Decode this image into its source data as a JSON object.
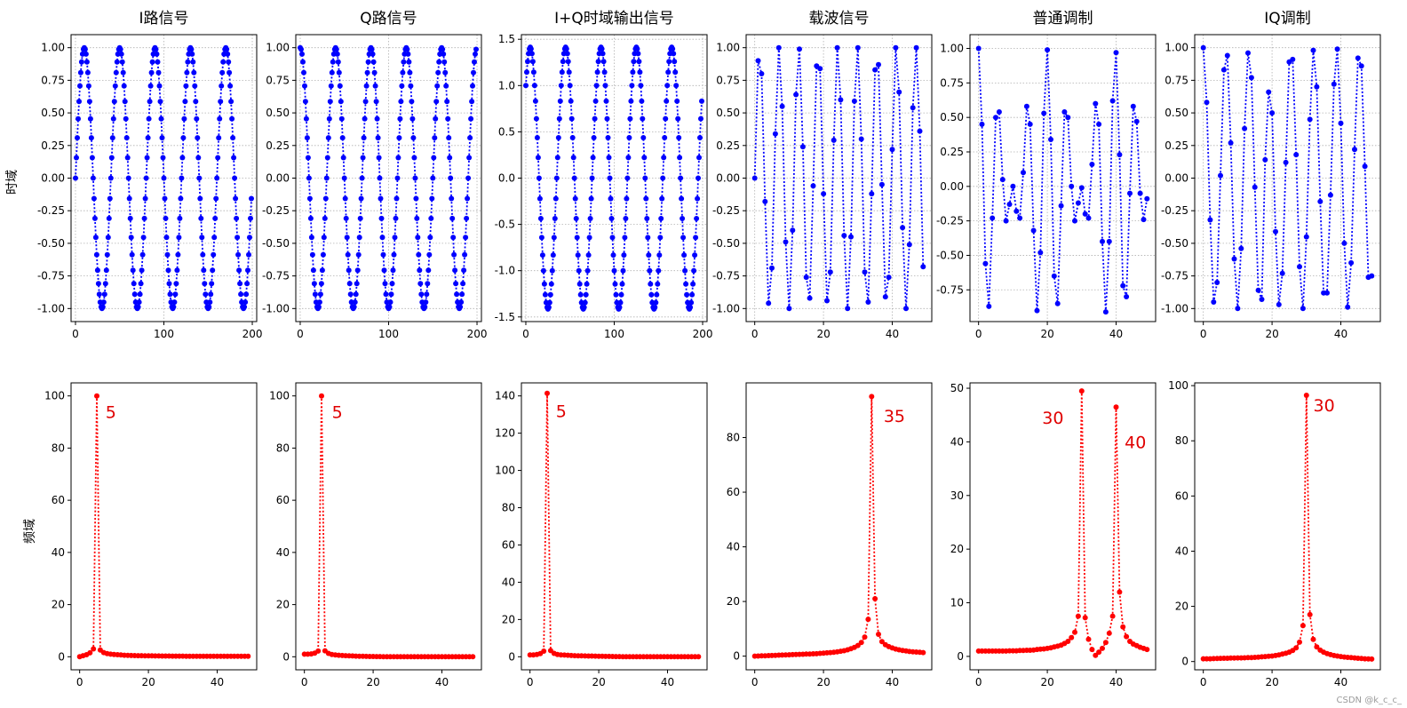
{
  "watermark": "CSDN @k_c_c_",
  "colors": {
    "time": "#0000ff",
    "freq": "#ff0000",
    "annotation": "#e00000",
    "grid": "#b0b0b0",
    "axis": "#000000"
  },
  "row_labels": {
    "time": "时域",
    "freq": "频域"
  },
  "chart_data": [
    {
      "id": "t0",
      "type": "line",
      "title": "I路信号",
      "xlim": [
        -5,
        205
      ],
      "ylim": [
        -1.1,
        1.1
      ],
      "xticks": [
        0,
        100,
        200
      ],
      "xticklabels": [
        "0",
        "100",
        "200"
      ],
      "yticks": [
        1.0,
        0.75,
        0.5,
        0.25,
        0.0,
        -0.25,
        -0.5,
        -0.75,
        -1.0
      ],
      "yticklabels": [
        "1.00",
        "0.75",
        "0.50",
        "0.25",
        "0.00",
        "-0.25",
        "-0.50",
        "-0.75",
        "-1.00"
      ],
      "grid": true,
      "marker": "dotted-line-with-dots",
      "series": {
        "kind": "sine",
        "n": 200,
        "cycles": 5,
        "phase": "sin",
        "amplitude": 1
      }
    },
    {
      "id": "t1",
      "type": "line",
      "title": "Q路信号",
      "xlim": [
        -5,
        205
      ],
      "ylim": [
        -1.1,
        1.1
      ],
      "xticks": [
        0,
        100,
        200
      ],
      "xticklabels": [
        "0",
        "100",
        "200"
      ],
      "yticks": [
        1.0,
        0.75,
        0.5,
        0.25,
        0.0,
        -0.25,
        -0.5,
        -0.75,
        -1.0
      ],
      "yticklabels": [
        "1.00",
        "0.75",
        "0.50",
        "0.25",
        "0.00",
        "-0.25",
        "-0.50",
        "-0.75",
        "-1.00"
      ],
      "grid": true,
      "marker": "dotted-line-with-dots",
      "series": {
        "kind": "sine",
        "n": 200,
        "cycles": 5,
        "phase": "cos",
        "amplitude": 1
      }
    },
    {
      "id": "t2",
      "type": "line",
      "title": "I+Q时域输出信号",
      "xlim": [
        -5,
        205
      ],
      "ylim": [
        -1.55,
        1.55
      ],
      "xticks": [
        0,
        100,
        200
      ],
      "xticklabels": [
        "0",
        "100",
        "200"
      ],
      "yticks": [
        1.5,
        1.0,
        0.5,
        0.0,
        -0.5,
        -1.0,
        -1.5
      ],
      "yticklabels": [
        "1.5",
        "1.0",
        "0.5",
        "0.0",
        "-0.5",
        "-1.0",
        "-1.5"
      ],
      "grid": true,
      "marker": "dotted-line-with-dots",
      "series": {
        "kind": "sine",
        "n": 200,
        "cycles": 5,
        "phase": "sum",
        "amplitude": 1
      }
    },
    {
      "id": "t3",
      "type": "line",
      "title": "载波信号",
      "xlim": [
        -2.5,
        51.5
      ],
      "ylim": [
        -1.1,
        1.1
      ],
      "xticks": [
        0,
        20,
        40
      ],
      "xticklabels": [
        "0",
        "20",
        "40"
      ],
      "yticks": [
        1.0,
        0.75,
        0.5,
        0.25,
        0.0,
        -0.25,
        -0.5,
        -0.75,
        -1.0
      ],
      "yticklabels": [
        "1.00",
        "0.75",
        "0.50",
        "0.25",
        "0.00",
        "-0.25",
        "-0.50",
        "-0.75",
        "-1.00"
      ],
      "grid": true,
      "marker": "dotted-line-with-dots",
      "series": {
        "kind": "values",
        "x_start": 0,
        "x_step": 1,
        "values": [
          0.0,
          0.9,
          0.8,
          -0.18,
          -0.96,
          -0.69,
          0.34,
          1.0,
          0.55,
          -0.49,
          -1.0,
          -0.4,
          0.64,
          0.99,
          0.24,
          -0.76,
          -0.92,
          -0.06,
          0.86,
          0.84,
          -0.12,
          -0.94,
          -0.72,
          0.29,
          1.0,
          0.6,
          -0.44,
          -1.0,
          -0.45,
          0.59,
          1.0,
          0.3,
          -0.72,
          -0.95,
          -0.12,
          0.83,
          0.87,
          -0.05,
          -0.91,
          -0.76,
          0.22,
          1.0,
          0.66,
          -0.38,
          -1.0,
          -0.51,
          0.54,
          1.0,
          0.36,
          -0.68
        ]
      }
    },
    {
      "id": "t4",
      "type": "line",
      "title": "普通调制",
      "xlim": [
        -2.5,
        51.5
      ],
      "ylim": [
        -0.98,
        1.1
      ],
      "xticks": [
        0,
        20,
        40
      ],
      "xticklabels": [
        "0",
        "20",
        "40"
      ],
      "yticks": [
        1.0,
        0.75,
        0.5,
        0.25,
        0.0,
        -0.25,
        -0.5,
        -0.75
      ],
      "yticklabels": [
        "1.00",
        "0.75",
        "0.50",
        "0.25",
        "0.00",
        "-0.25",
        "-0.50",
        "-0.75"
      ],
      "grid": true,
      "marker": "dotted-line-with-dots",
      "series": {
        "kind": "values",
        "x_start": 0,
        "x_step": 1,
        "values": [
          1.0,
          0.45,
          -0.56,
          -0.87,
          -0.23,
          0.5,
          0.54,
          0.05,
          -0.25,
          -0.13,
          0.0,
          -0.18,
          -0.23,
          0.1,
          0.58,
          0.45,
          -0.32,
          -0.9,
          -0.48,
          0.53,
          0.99,
          0.34,
          -0.65,
          -0.85,
          -0.14,
          0.54,
          0.5,
          0.0,
          -0.25,
          -0.12,
          -0.01,
          -0.2,
          -0.23,
          0.16,
          0.6,
          0.45,
          -0.4,
          -0.91,
          -0.4,
          0.62,
          0.97,
          0.23,
          -0.72,
          -0.8,
          -0.05,
          0.58,
          0.47,
          -0.05,
          -0.24,
          -0.09
        ]
      }
    },
    {
      "id": "t5",
      "type": "line",
      "title": "IQ调制",
      "xlim": [
        -2.5,
        51.5
      ],
      "ylim": [
        -1.1,
        1.1
      ],
      "xticks": [
        0,
        20,
        40
      ],
      "xticklabels": [
        "0",
        "20",
        "40"
      ],
      "yticks": [
        1.0,
        0.75,
        0.5,
        0.25,
        0.0,
        -0.25,
        -0.5,
        -0.75,
        -1.0
      ],
      "yticklabels": [
        "1.00",
        "0.75",
        "0.50",
        "0.25",
        "0.00",
        "-0.25",
        "-0.50",
        "-0.75",
        "-1.00"
      ],
      "grid": true,
      "marker": "dotted-line-with-dots",
      "series": {
        "kind": "values",
        "x_start": 0,
        "x_step": 1,
        "values": [
          1.0,
          0.58,
          -0.32,
          -0.95,
          -0.8,
          0.02,
          0.83,
          0.94,
          0.27,
          -0.62,
          -1.0,
          -0.54,
          0.38,
          0.96,
          0.77,
          -0.07,
          -0.86,
          -0.93,
          0.14,
          0.66,
          0.5,
          -0.41,
          -0.97,
          -0.73,
          0.12,
          0.89,
          0.91,
          0.18,
          -0.68,
          -1.0,
          -0.45,
          0.45,
          0.98,
          0.7,
          -0.18,
          -0.88,
          -0.88,
          -0.13,
          0.72,
          0.99,
          0.42,
          -0.5,
          -0.99,
          -0.65,
          0.22,
          0.92,
          0.86,
          0.09,
          -0.76,
          -0.75
        ]
      }
    },
    {
      "id": "f0",
      "type": "line",
      "title": "",
      "xlim": [
        -2.5,
        51.5
      ],
      "ylim": [
        -5,
        105
      ],
      "xticks": [
        0,
        20,
        40
      ],
      "xticklabels": [
        "0",
        "20",
        "40"
      ],
      "yticks": [
        0,
        20,
        40,
        60,
        80,
        100
      ],
      "yticklabels": [
        "0",
        "20",
        "40",
        "60",
        "80",
        "100"
      ],
      "grid": false,
      "marker": "dotted-line-with-dots",
      "annotations": [
        {
          "text": "5",
          "x": 7.5,
          "y": 94
        }
      ],
      "series": {
        "kind": "values",
        "x_start": 0,
        "x_step": 1,
        "values": [
          0.0,
          0.4,
          0.8,
          1.5,
          3.0,
          100.0,
          2.6,
          1.6,
          1.2,
          1.0,
          0.9,
          0.8,
          0.7,
          0.6,
          0.55,
          0.5,
          0.45,
          0.42,
          0.4,
          0.38,
          0.36,
          0.34,
          0.32,
          0.3,
          0.29,
          0.28,
          0.27,
          0.26,
          0.25,
          0.24,
          0.23,
          0.22,
          0.21,
          0.2,
          0.2,
          0.2,
          0.19,
          0.19,
          0.18,
          0.18,
          0.18,
          0.17,
          0.17,
          0.17,
          0.17,
          0.16,
          0.16,
          0.16,
          0.16,
          0.16
        ]
      }
    },
    {
      "id": "f1",
      "type": "line",
      "title": "",
      "xlim": [
        -2.5,
        51.5
      ],
      "ylim": [
        -5,
        105
      ],
      "xticks": [
        0,
        20,
        40
      ],
      "xticklabels": [
        "0",
        "20",
        "40"
      ],
      "yticks": [
        0,
        20,
        40,
        60,
        80,
        100
      ],
      "yticklabels": [
        "0",
        "20",
        "40",
        "60",
        "80",
        "100"
      ],
      "grid": false,
      "marker": "dotted-line-with-dots",
      "annotations": [
        {
          "text": "5",
          "x": 8,
          "y": 94
        }
      ],
      "series": {
        "kind": "values",
        "x_start": 0,
        "x_step": 1,
        "values": [
          1.0,
          1.0,
          1.1,
          1.4,
          2.2,
          100.0,
          2.3,
          1.3,
          0.9,
          0.7,
          0.6,
          0.5,
          0.4,
          0.35,
          0.3,
          0.25,
          0.2,
          0.18,
          0.15,
          0.12,
          0.1,
          0.08,
          0.06,
          0.05,
          0.04,
          0.03,
          0.02,
          0.02,
          0.01,
          0.01,
          0.0,
          0.0,
          0.0,
          0.0,
          0.0,
          0.0,
          0.0,
          0.0,
          0.0,
          0.0,
          0.0,
          0.0,
          0.0,
          0.0,
          0.0,
          0.0,
          0.0,
          0.0,
          0.0,
          0.0
        ]
      }
    },
    {
      "id": "f2",
      "type": "line",
      "title": "",
      "xlim": [
        -2.5,
        51.5
      ],
      "ylim": [
        -7,
        147
      ],
      "xticks": [
        0,
        20,
        40
      ],
      "xticklabels": [
        "0",
        "20",
        "40"
      ],
      "yticks": [
        0,
        20,
        40,
        60,
        80,
        100,
        120,
        140
      ],
      "yticklabels": [
        "0",
        "20",
        "40",
        "60",
        "80",
        "100",
        "120",
        "140"
      ],
      "grid": false,
      "marker": "dotted-line-with-dots",
      "annotations": [
        {
          "text": "5",
          "x": 7.5,
          "y": 132
        }
      ],
      "series": {
        "kind": "values",
        "x_start": 0,
        "x_step": 1,
        "values": [
          1.0,
          1.0,
          1.2,
          1.7,
          3.0,
          141.4,
          3.3,
          1.8,
          1.2,
          1.0,
          0.9,
          0.8,
          0.7,
          0.6,
          0.55,
          0.5,
          0.45,
          0.4,
          0.38,
          0.35,
          0.3,
          0.25,
          0.2,
          0.18,
          0.15,
          0.12,
          0.1,
          0.08,
          0.06,
          0.05,
          0.04,
          0.03,
          0.02,
          0.02,
          0.01,
          0.01,
          0.0,
          0.0,
          0.0,
          0.0,
          0.0,
          0.0,
          0.0,
          0.0,
          0.0,
          0.0,
          0.0,
          0.0,
          0.0,
          0.0
        ]
      }
    },
    {
      "id": "f3",
      "type": "line",
      "title": "",
      "xlim": [
        -2.5,
        51.5
      ],
      "ylim": [
        -5,
        100
      ],
      "xticks": [
        0,
        20,
        40
      ],
      "xticklabels": [
        "0",
        "20",
        "40"
      ],
      "yticks": [
        0,
        20,
        40,
        60,
        80
      ],
      "yticklabels": [
        "0",
        "20",
        "40",
        "60",
        "80"
      ],
      "grid": false,
      "marker": "dotted-line-with-dots",
      "annotations": [
        {
          "text": "35",
          "x": 37.5,
          "y": 88
        }
      ],
      "series": {
        "kind": "values",
        "x_start": 0,
        "x_step": 1,
        "values": [
          0.0,
          0.05,
          0.1,
          0.15,
          0.2,
          0.25,
          0.3,
          0.35,
          0.4,
          0.45,
          0.5,
          0.55,
          0.6,
          0.65,
          0.7,
          0.75,
          0.8,
          0.85,
          0.9,
          1.0,
          1.1,
          1.2,
          1.3,
          1.45,
          1.6,
          1.8,
          2.0,
          2.3,
          2.7,
          3.2,
          3.9,
          5.0,
          7.0,
          13.5,
          95.0,
          21.0,
          8.0,
          5.3,
          4.2,
          3.5,
          3.0,
          2.6,
          2.3,
          2.1,
          1.9,
          1.7,
          1.6,
          1.5,
          1.4,
          1.3
        ]
      }
    },
    {
      "id": "f4",
      "type": "line",
      "title": "",
      "xlim": [
        -2.5,
        51.5
      ],
      "ylim": [
        -2.5,
        51
      ],
      "xticks": [
        0,
        20,
        40
      ],
      "xticklabels": [
        "0",
        "20",
        "40"
      ],
      "yticks": [
        0,
        10,
        20,
        30,
        40,
        50
      ],
      "yticklabels": [
        "0",
        "10",
        "20",
        "30",
        "40",
        "50"
      ],
      "grid": false,
      "marker": "dotted-line-with-dots",
      "annotations": [
        {
          "text": "30",
          "x": 18.5,
          "y": 44.5
        },
        {
          "text": "40",
          "x": 42.5,
          "y": 40
        }
      ],
      "series": {
        "kind": "values",
        "x_start": 0,
        "x_step": 1,
        "values": [
          1.0,
          1.0,
          1.0,
          1.0,
          1.0,
          1.0,
          1.0,
          1.0,
          1.0,
          1.05,
          1.05,
          1.05,
          1.1,
          1.1,
          1.15,
          1.15,
          1.2,
          1.3,
          1.35,
          1.4,
          1.5,
          1.6,
          1.75,
          1.9,
          2.1,
          2.4,
          2.8,
          3.5,
          4.5,
          7.5,
          49.5,
          7.2,
          3.2,
          1.3,
          0.2,
          0.8,
          1.5,
          2.6,
          4.3,
          7.5,
          46.5,
          12.0,
          5.5,
          3.7,
          2.8,
          2.3,
          2.0,
          1.7,
          1.5,
          1.3
        ]
      }
    },
    {
      "id": "f5",
      "type": "line",
      "title": "",
      "xlim": [
        -2.5,
        51.5
      ],
      "ylim": [
        -3,
        101
      ],
      "xticks": [
        0,
        20,
        40
      ],
      "xticklabels": [
        "0",
        "20",
        "40"
      ],
      "yticks": [
        0,
        20,
        40,
        60,
        80,
        100
      ],
      "yticklabels": [
        "0",
        "20",
        "40",
        "60",
        "80",
        "100"
      ],
      "grid": false,
      "marker": "dotted-line-with-dots",
      "annotations": [
        {
          "text": "30",
          "x": 32,
          "y": 93
        }
      ],
      "series": {
        "kind": "values",
        "x_start": 0,
        "x_step": 1,
        "values": [
          1.0,
          1.0,
          1.0,
          1.05,
          1.1,
          1.15,
          1.2,
          1.2,
          1.25,
          1.25,
          1.3,
          1.3,
          1.35,
          1.4,
          1.45,
          1.5,
          1.6,
          1.7,
          1.8,
          1.9,
          2.0,
          2.2,
          2.4,
          2.7,
          3.0,
          3.4,
          4.0,
          5.0,
          7.0,
          13.0,
          96.5,
          17.0,
          8.0,
          5.3,
          4.1,
          3.4,
          2.9,
          2.5,
          2.2,
          2.0,
          1.8,
          1.65,
          1.5,
          1.4,
          1.3,
          1.2,
          1.1,
          1.0,
          0.95,
          0.9
        ]
      }
    }
  ]
}
